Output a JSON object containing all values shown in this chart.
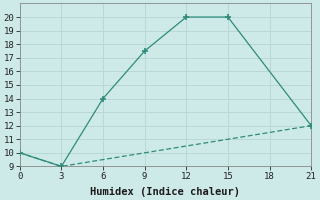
{
  "xlabel": "Humidex (Indice chaleur)",
  "line1_x": [
    0,
    3,
    6,
    9,
    12,
    15,
    21
  ],
  "line1_y": [
    10,
    9,
    14,
    17.5,
    20,
    20,
    12
  ],
  "line2_x": [
    0,
    3,
    21
  ],
  "line2_y": [
    10,
    9,
    12
  ],
  "line_color": "#2e8b7a",
  "bg_color": "#ceeae8",
  "grid_color": "#b8d8d5",
  "xlim": [
    0,
    21
  ],
  "ylim": [
    9,
    21
  ],
  "xticks": [
    0,
    3,
    6,
    9,
    12,
    15,
    18,
    21
  ],
  "yticks": [
    9,
    10,
    11,
    12,
    13,
    14,
    15,
    16,
    17,
    18,
    19,
    20
  ],
  "marker": "+",
  "markersize": 5,
  "markeredgewidth": 1.2,
  "linewidth": 0.9,
  "font_family": "monospace",
  "tick_fontsize": 6.5,
  "xlabel_fontsize": 7.5
}
